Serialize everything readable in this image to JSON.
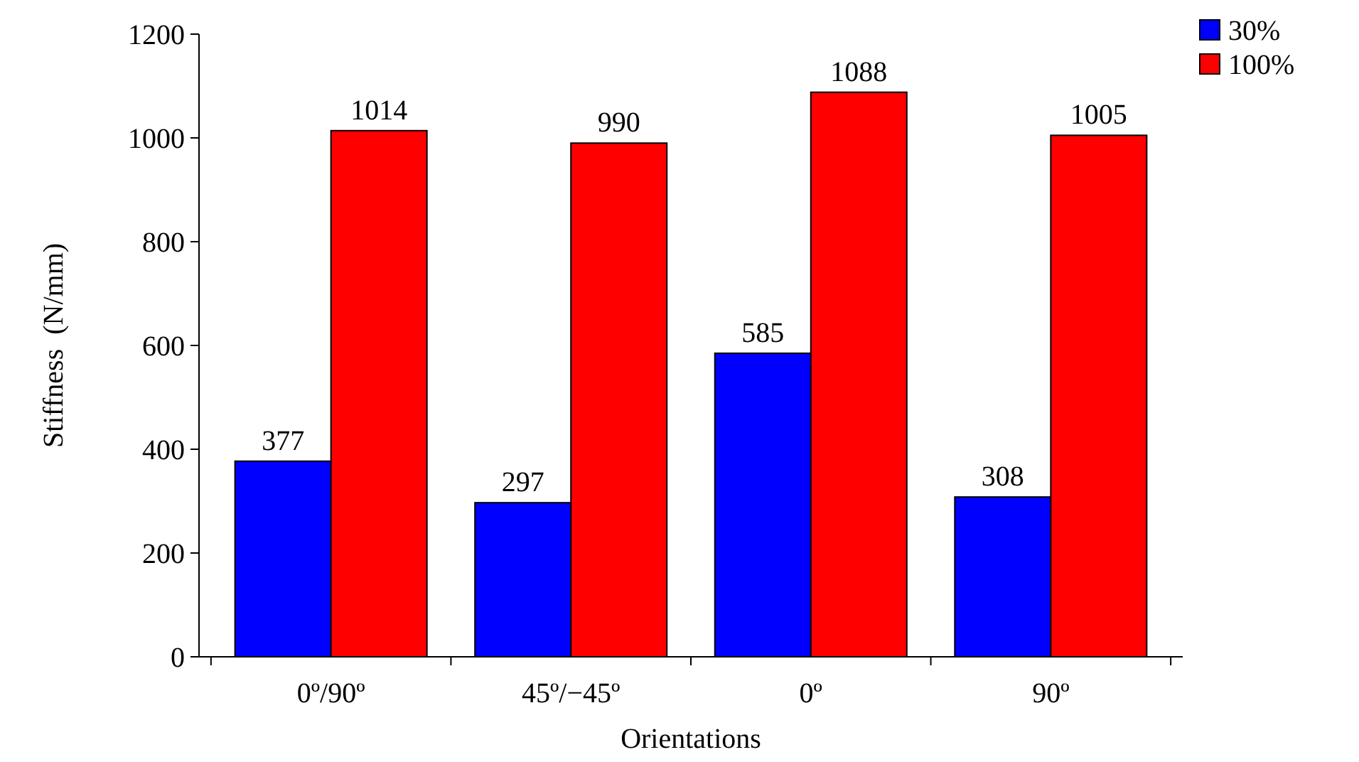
{
  "chart_data": {
    "type": "bar",
    "xlabel": "Orientations",
    "ylabel": "Stiffness  (N/mm)",
    "categories": [
      "0º/90º",
      "45º/−45º",
      "0º",
      "90º"
    ],
    "series": [
      {
        "name": "30%",
        "color": "#0000ff",
        "values": [
          377,
          297,
          585,
          308
        ]
      },
      {
        "name": "100%",
        "color": "#ff0000",
        "values": [
          1014,
          990,
          1088,
          1005
        ]
      }
    ],
    "ylim": [
      0,
      1200
    ],
    "yticks": [
      0,
      200,
      400,
      600,
      800,
      1000,
      1200
    ],
    "data_labels": true,
    "legend": "top right",
    "grid": false
  }
}
